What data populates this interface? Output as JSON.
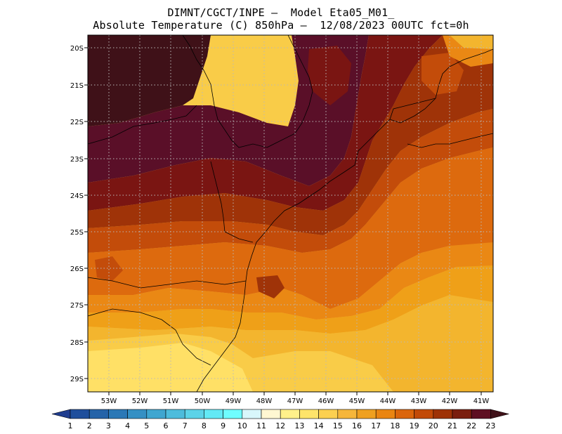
{
  "title": {
    "line1": "DIMNT/CGCT/INPE —  Model Eta05_M01_",
    "line2": "Absolute Temperature (C) 850hPa —  12/08/2023 00UTC fct=0h"
  },
  "axes": {
    "lat_labels": [
      "20S",
      "21S",
      "22S",
      "23S",
      "24S",
      "25S",
      "26S",
      "27S",
      "28S",
      "29S"
    ],
    "lon_labels": [
      "53W",
      "52W",
      "51W",
      "50W",
      "49W",
      "48W",
      "47W",
      "46W",
      "45W",
      "44W",
      "43W",
      "42W",
      "41W"
    ]
  },
  "colorbar": {
    "labels": [
      "1",
      "2",
      "3",
      "4",
      "5",
      "6",
      "7",
      "8",
      "9",
      "10",
      "11",
      "12",
      "13",
      "14",
      "15",
      "16",
      "17",
      "18",
      "19",
      "20",
      "21",
      "22",
      "23"
    ],
    "colors": [
      "#1f3d8f",
      "#1f4f9c",
      "#2563a8",
      "#2b78b6",
      "#3590c4",
      "#3fa6d0",
      "#4dbcdc",
      "#5cd3e8",
      "#63e9f5",
      "#6ffdff",
      "#d8f7fb",
      "#fff7d2",
      "#fff08a",
      "#fee46a",
      "#fcd050",
      "#f6b63a",
      "#efa020",
      "#ea8512",
      "#db650c",
      "#c24a08",
      "#9e3206",
      "#7a1e0e",
      "#5e0f22"
    ]
  },
  "map_colors": {
    "t13": "#ffee80",
    "t14": "#ffe066",
    "t15": "#f9cc48",
    "t16": "#f3b52e",
    "t17": "#efa018",
    "t18": "#ea8814",
    "t19": "#dd6a0e",
    "t20": "#c34c0a",
    "t21": "#9f3308",
    "t22": "#7a1512",
    "t23": "#5a0f28",
    "t24": "#3f1118"
  }
}
